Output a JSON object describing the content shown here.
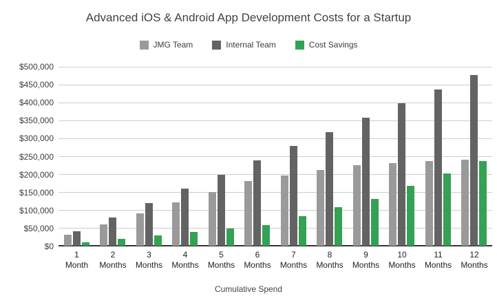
{
  "chart_data": {
    "type": "bar",
    "title": "Advanced iOS & Android App Development Costs for a Startup",
    "xlabel": "Cumulative Spend",
    "ylabel": "",
    "categories": [
      "1 Month",
      "2 Months",
      "3 Months",
      "4 Months",
      "5 Months",
      "6 Months",
      "7 Months",
      "8 Months",
      "9 Months",
      "10 Months",
      "11 Months",
      "12 Months"
    ],
    "series": [
      {
        "name": "JMG Team",
        "color": "#9a9a9a",
        "values": [
          30000,
          60000,
          90000,
          120000,
          150000,
          180000,
          195000,
          210000,
          225000,
          230000,
          235000,
          240000
        ]
      },
      {
        "name": "Internal Team",
        "color": "#636363",
        "values": [
          39583,
          79167,
          118750,
          158333,
          197917,
          237500,
          277083,
          316667,
          356250,
          395833,
          435417,
          475000
        ]
      },
      {
        "name": "Cost Savings",
        "color": "#34a155",
        "values": [
          9583,
          19167,
          28750,
          38333,
          47917,
          57500,
          82083,
          106667,
          131250,
          165833,
          200417,
          235000
        ]
      }
    ],
    "ylim": [
      0,
      500000
    ],
    "ytick_step": 50000,
    "ytick_labels": [
      "$0",
      "$50,000",
      "$100,000",
      "$150,000",
      "$200,000",
      "$250,000",
      "$300,000",
      "$350,000",
      "$400,000",
      "$450,000",
      "$500,000"
    ],
    "grid": true,
    "legend_position": "top",
    "colors": {
      "background": "#ffffff",
      "gridline": "#cccccc",
      "axis_line": "#333333",
      "title_text": "#424242",
      "tick_text": "#3c3c3c"
    }
  }
}
